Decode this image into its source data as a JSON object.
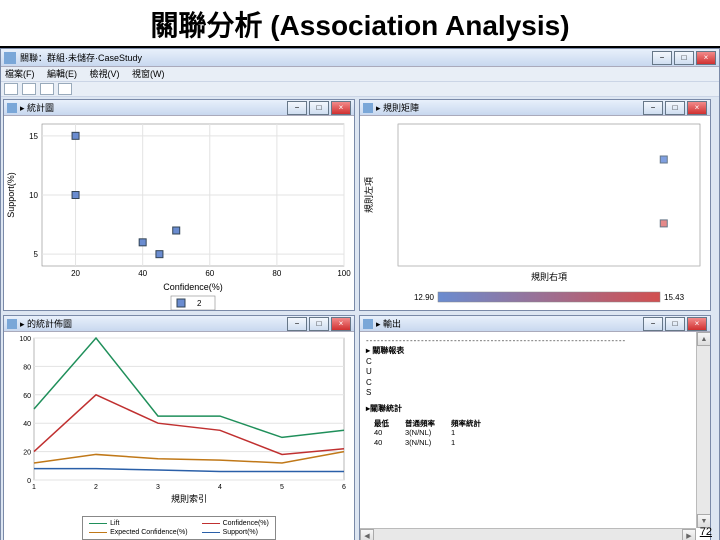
{
  "slide": {
    "title": "關聯分析 (Association Analysis)",
    "page_number": "72"
  },
  "app": {
    "title": "關聯：群組·未儲存·CaseStudy",
    "menu": [
      "檔案(F)",
      "編輯(E)",
      "檢視(V)",
      "視窗(W)"
    ],
    "window_controls": {
      "min": "−",
      "max": "□",
      "close": "×"
    }
  },
  "panel_scatter": {
    "title": "▸ 統計圖",
    "type": "scatter",
    "xlabel": "Confidence(%)",
    "ylabel": "Support(%)",
    "xlim": [
      10,
      100
    ],
    "ylim": [
      4,
      16
    ],
    "xticks": [
      20,
      40,
      60,
      80,
      100
    ],
    "yticks": [
      5,
      10,
      15
    ],
    "points": [
      {
        "x": 20,
        "y": 15,
        "color": "#6a8cd0"
      },
      {
        "x": 20,
        "y": 10,
        "color": "#6a8cd0"
      },
      {
        "x": 40,
        "y": 6,
        "color": "#6a8cd0"
      },
      {
        "x": 45,
        "y": 5,
        "color": "#6a8cd0"
      },
      {
        "x": 50,
        "y": 7,
        "color": "#6a8cd0"
      }
    ],
    "marker_size": 7,
    "background_color": "#ffffff",
    "grid_color": "#e3e3e3",
    "legend_label": "2"
  },
  "panel_matrix": {
    "title": "▸ 規則矩陣",
    "type": "heatmap",
    "xlabel": "規則右項",
    "ylabel": "規則左項",
    "points": [
      {
        "x": 0.88,
        "y": 0.25,
        "color": "#7f9fe0"
      },
      {
        "x": 0.88,
        "y": 0.7,
        "color": "#e58a8a"
      }
    ],
    "gradient": {
      "low": "#6a8cd0",
      "high": "#d25050",
      "low_label": "12.90",
      "high_label": "15.43"
    },
    "marker_size": 7,
    "background_color": "#ffffff"
  },
  "panel_lines": {
    "title": "▸ 的統計佈圖",
    "type": "line",
    "xlabel": "規則索引",
    "xlim": [
      1,
      6
    ],
    "ylim": [
      0,
      100
    ],
    "xticks": [
      1,
      2,
      3,
      4,
      5,
      6
    ],
    "yticks": [
      0,
      20,
      40,
      60,
      80,
      100
    ],
    "series": [
      {
        "name": "Lift",
        "color": "#1f8f5a",
        "values": [
          50,
          100,
          45,
          45,
          30,
          35
        ]
      },
      {
        "name": "Expected Confidence(%)",
        "color": "#c07818",
        "values": [
          12,
          18,
          15,
          14,
          12,
          20
        ]
      },
      {
        "name": "Confidence(%)",
        "color": "#c03030",
        "values": [
          20,
          60,
          40,
          35,
          18,
          22
        ]
      },
      {
        "name": "Support(%)",
        "color": "#2a5fa8",
        "values": [
          8,
          8,
          7,
          6,
          6,
          6
        ]
      }
    ],
    "line_width": 1.5,
    "background_color": "#ffffff",
    "grid_color": "#e3e3e3"
  },
  "panel_report": {
    "title": "▸ 輸出",
    "header_dashes": "-----------------------------------------------------------------------",
    "section_label": "▸ 關聯報表",
    "lines": [
      "C",
      "U",
      "C",
      "S"
    ],
    "summary_label": "▸關聯統計",
    "table": {
      "columns": [
        "最低",
        "普通頻率",
        "頻率統計"
      ],
      "rows": [
        [
          "40",
          "3(N/NL)",
          "1"
        ],
        [
          "40",
          "3(N/NL)",
          "1"
        ]
      ]
    }
  }
}
